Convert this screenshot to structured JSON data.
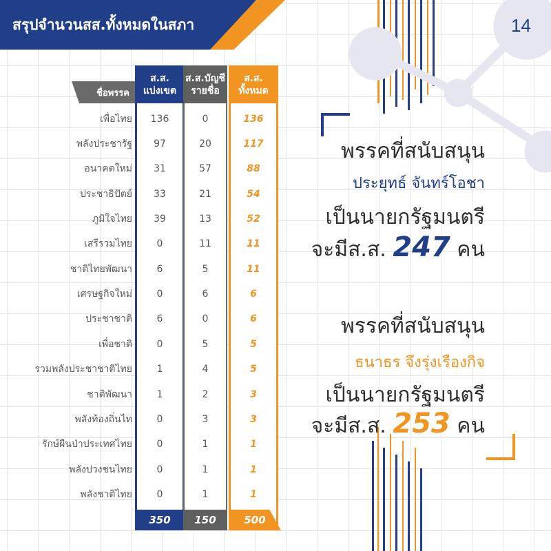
{
  "header": {
    "title": "สรุปจำนวนสส.ทั้งหมดในสภา",
    "page_number": "14"
  },
  "table": {
    "party_header": "ชื่อพรรค",
    "district_header": [
      "ส.ส.",
      "แบ่งเขต"
    ],
    "list_header": [
      "ส.ส.บัญชี",
      "รายชื่อ"
    ],
    "total_header": [
      "ส.ส.",
      "ทั้งหมด"
    ],
    "rows": [
      {
        "party": "เพื่อไทย",
        "district": "136",
        "list": "0",
        "total": "136"
      },
      {
        "party": "พลังประชารัฐ",
        "district": "97",
        "list": "20",
        "total": "117"
      },
      {
        "party": "อนาคตใหม่",
        "district": "31",
        "list": "57",
        "total": "88"
      },
      {
        "party": "ประชาธิปัตย์",
        "district": "33",
        "list": "21",
        "total": "54"
      },
      {
        "party": "ภูมิใจไทย",
        "district": "39",
        "list": "13",
        "total": "52"
      },
      {
        "party": "เสรีรวมไทย",
        "district": "0",
        "list": "11",
        "total": "11"
      },
      {
        "party": "ชาติไทยพัฒนา",
        "district": "6",
        "list": "5",
        "total": "11"
      },
      {
        "party": "เศรษฐกิจใหม่",
        "district": "0",
        "list": "6",
        "total": "6"
      },
      {
        "party": "ประชาชาติ",
        "district": "6",
        "list": "0",
        "total": "6"
      },
      {
        "party": "เพื่อชาติ",
        "district": "0",
        "list": "5",
        "total": "5"
      },
      {
        "party": "รวมพลังประชาชาติไทย",
        "district": "1",
        "list": "4",
        "total": "5"
      },
      {
        "party": "ชาติพัฒนา",
        "district": "1",
        "list": "2",
        "total": "3"
      },
      {
        "party": "พลังท้องถิ่นไท",
        "district": "0",
        "list": "3",
        "total": "3"
      },
      {
        "party": "รักษ์ผืนป่าประเทศไทย",
        "district": "0",
        "list": "1",
        "total": "1"
      },
      {
        "party": "พลังปวงชนไทย",
        "district": "0",
        "list": "1",
        "total": "1"
      },
      {
        "party": "พลังชาติไทย",
        "district": "0",
        "list": "1",
        "total": "1"
      }
    ],
    "totals": {
      "district": "350",
      "list": "150",
      "total": "500"
    }
  },
  "summary": {
    "block1": {
      "line1": "พรรคที่สนับสนุน",
      "candidate": "ประยุทธ์  จันทร์โอชา",
      "line3": "เป็นนายกรัฐมนตรี",
      "prefix": "จะมีส.ส.",
      "number": "247",
      "suffix": "คน"
    },
    "block2": {
      "line1": "พรรคที่สนับสนุน",
      "candidate": "ธนาธร  จึงรุ่งเรืองกิจ",
      "line3": "เป็นนายกรัฐมนตรี",
      "prefix": "จะมีส.ส.",
      "number": "253",
      "suffix": "คน"
    }
  },
  "colors": {
    "blue": "#213E88",
    "orange": "#F29421",
    "gray": "#5f5f5f"
  }
}
